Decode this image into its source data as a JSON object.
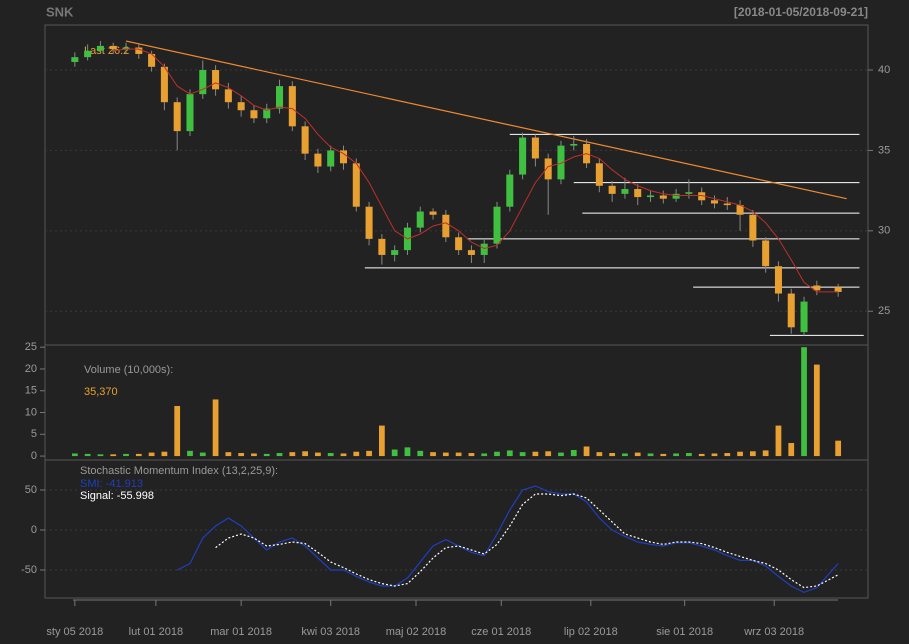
{
  "chart_data": [
    {
      "type": "candlestick",
      "title": "SNK",
      "date_range": "[2018-01-05/2018-09-21]",
      "last_label": "Last 26.2",
      "up_color": "#40c040",
      "down_color": "#e8a030",
      "ma_color": "#c0302a",
      "line_color": "#ffffff",
      "trend_color": "#f08a30",
      "x": [
        0,
        3,
        6,
        9,
        12,
        15,
        18,
        21,
        24,
        27,
        30,
        33,
        36,
        39,
        42,
        45,
        48,
        51,
        54,
        57,
        60,
        63,
        66,
        69,
        72,
        75,
        78,
        81,
        84,
        87,
        90,
        93,
        96,
        99,
        102,
        105,
        108,
        111,
        114,
        117,
        120,
        123,
        126,
        129,
        132,
        135,
        138,
        141,
        144,
        147,
        150,
        153,
        156,
        159,
        162,
        165,
        168,
        171,
        174,
        179
      ],
      "open": [
        40.5,
        40.8,
        41.2,
        41.5,
        41.3,
        41.4,
        41.0,
        40.2,
        38.0,
        36.2,
        38.5,
        40.0,
        38.8,
        38.0,
        37.5,
        37.0,
        37.6,
        39.0,
        36.5,
        34.8,
        34.0,
        35.0,
        34.2,
        31.5,
        29.5,
        28.5,
        28.8,
        30.2,
        31.2,
        31.0,
        29.6,
        28.8,
        28.5,
        29.2,
        31.5,
        33.5,
        35.8,
        34.5,
        33.2,
        35.3,
        35.4,
        34.2,
        32.8,
        32.3,
        32.6,
        32.1,
        32.2,
        32.0,
        32.3,
        32.4,
        31.9,
        31.7,
        31.6,
        31.0,
        29.4,
        27.8,
        26.1,
        23.7,
        26.6,
        26.5
      ],
      "high": [
        41.1,
        41.6,
        41.8,
        41.7,
        41.7,
        41.6,
        41.2,
        40.4,
        38.3,
        38.8,
        40.6,
        40.3,
        39.2,
        38.4,
        37.8,
        37.9,
        39.4,
        39.3,
        36.8,
        35.1,
        35.3,
        35.3,
        34.5,
        31.8,
        29.8,
        29.1,
        30.5,
        31.5,
        31.4,
        31.3,
        29.9,
        29.1,
        29.5,
        31.8,
        33.8,
        36.1,
        36.0,
        34.8,
        35.6,
        35.9,
        35.7,
        34.5,
        33.1,
        33.3,
        32.9,
        32.5,
        32.5,
        32.6,
        33.2,
        32.7,
        32.2,
        32.1,
        31.9,
        31.3,
        29.6,
        28.1,
        26.4,
        25.9,
        26.9,
        26.7
      ],
      "low": [
        40.2,
        40.6,
        41.0,
        41.0,
        41.0,
        40.7,
        39.9,
        37.5,
        35.0,
        35.9,
        38.2,
        38.4,
        37.6,
        37.1,
        36.7,
        36.7,
        37.3,
        36.2,
        34.4,
        33.6,
        33.7,
        33.8,
        31.2,
        29.1,
        27.9,
        28.1,
        28.5,
        29.9,
        30.7,
        29.3,
        28.5,
        28.0,
        28.0,
        28.9,
        31.2,
        33.2,
        34.0,
        31.0,
        32.9,
        35.0,
        33.9,
        32.4,
        31.8,
        32.0,
        31.6,
        31.8,
        31.7,
        31.8,
        32.0,
        31.6,
        31.4,
        31.3,
        30.0,
        29.0,
        27.4,
        25.6,
        23.6,
        23.5,
        26.0,
        25.9
      ],
      "close": [
        40.8,
        41.2,
        41.5,
        41.3,
        41.4,
        41.0,
        40.2,
        38.0,
        36.2,
        38.5,
        40.0,
        38.8,
        38.0,
        37.5,
        37.0,
        37.6,
        39.0,
        36.5,
        34.8,
        34.0,
        35.0,
        34.2,
        31.5,
        29.5,
        28.5,
        28.8,
        30.2,
        31.2,
        31.0,
        29.6,
        28.8,
        28.5,
        29.2,
        31.5,
        33.5,
        35.8,
        34.5,
        33.2,
        35.3,
        35.4,
        34.2,
        32.8,
        32.3,
        32.6,
        32.1,
        32.2,
        32.0,
        32.3,
        32.4,
        31.9,
        31.7,
        31.6,
        31.0,
        29.4,
        27.8,
        26.1,
        24.0,
        25.6,
        26.3,
        26.2
      ],
      "ma": [
        null,
        null,
        null,
        41.2,
        41.3,
        41.3,
        41.0,
        40.2,
        39.0,
        38.5,
        38.8,
        39.2,
        38.9,
        38.4,
        37.8,
        37.5,
        37.7,
        37.6,
        37.0,
        36.0,
        35.2,
        34.8,
        34.2,
        33.0,
        31.5,
        30.0,
        29.5,
        29.8,
        30.3,
        30.5,
        30.0,
        29.3,
        28.9,
        29.1,
        30.0,
        31.5,
        33.0,
        34.0,
        34.2,
        34.6,
        34.8,
        34.5,
        33.8,
        33.2,
        32.8,
        32.5,
        32.3,
        32.2,
        32.2,
        32.2,
        32.0,
        31.8,
        31.6,
        31.2,
        30.5,
        29.5,
        28.2,
        26.8,
        26.2,
        26.2
      ],
      "hlines": [
        {
          "value": 36,
          "from": 102,
          "to": 184
        },
        {
          "value": 33,
          "from": 117,
          "to": 184
        },
        {
          "value": 31.1,
          "from": 119,
          "to": 184
        },
        {
          "value": 29.5,
          "from": 92,
          "to": 184
        },
        {
          "value": 27.7,
          "from": 68,
          "to": 184
        },
        {
          "value": 26.5,
          "from": 145,
          "to": 184
        },
        {
          "value": 23.5,
          "from": 163,
          "to": 185
        }
      ],
      "trendline": {
        "x": [
          12,
          181
        ],
        "y": [
          41.8,
          32.0
        ]
      },
      "xlim": [
        -7,
        186
      ],
      "ylim": [
        22.9,
        42.8
      ],
      "yticks": [
        25,
        30,
        35,
        40
      ],
      "grid": true
    },
    {
      "type": "bar",
      "title": "Volume (10,000s):",
      "last_label": "35,370",
      "values": [
        0.6,
        0.5,
        0.4,
        0.4,
        0.5,
        0.5,
        0.8,
        1.0,
        11.5,
        1.2,
        0.8,
        13.0,
        0.9,
        0.7,
        0.6,
        0.5,
        0.7,
        0.9,
        1.1,
        0.8,
        0.7,
        0.6,
        1.0,
        1.2,
        7.0,
        1.5,
        2.0,
        1.2,
        0.9,
        0.8,
        0.8,
        0.7,
        0.6,
        1.0,
        1.3,
        0.9,
        1.0,
        1.1,
        0.8,
        1.4,
        2.2,
        0.9,
        0.7,
        0.6,
        0.8,
        0.6,
        0.5,
        0.6,
        0.7,
        0.5,
        0.6,
        0.7,
        1.0,
        1.1,
        1.3,
        7.0,
        3.0,
        25.0,
        21.0,
        3.537
      ],
      "ylim": [
        -0.9,
        25.5
      ],
      "yticks": [
        0,
        5,
        10,
        15,
        20,
        25
      ]
    },
    {
      "type": "line",
      "title": "Stochastic Momentum Index (13,2,25,9):",
      "series": [
        {
          "name": "SMI",
          "label": "SMI: -41.913",
          "color": "#1f3fbf",
          "dash": false,
          "values": [
            null,
            null,
            null,
            null,
            null,
            null,
            null,
            null,
            -50,
            -42,
            -10,
            5,
            15,
            5,
            -10,
            -25,
            -15,
            -10,
            -20,
            -35,
            -50,
            -50,
            -58,
            -65,
            -70,
            -70,
            -60,
            -40,
            -20,
            -12,
            -20,
            -28,
            -32,
            -5,
            25,
            50,
            55,
            48,
            45,
            45,
            35,
            15,
            0,
            -8,
            -15,
            -18,
            -20,
            -16,
            -16,
            -20,
            -25,
            -32,
            -38,
            -38,
            -45,
            -58,
            -70,
            -78,
            -72,
            -41.913
          ]
        },
        {
          "name": "Signal",
          "label": "Signal: -55.998",
          "color": "#ffffff",
          "dash": true,
          "values": [
            null,
            null,
            null,
            null,
            null,
            null,
            null,
            null,
            null,
            null,
            null,
            -22,
            -10,
            -5,
            -10,
            -20,
            -18,
            -15,
            -17,
            -28,
            -40,
            -47,
            -55,
            -62,
            -67,
            -70,
            -67,
            -52,
            -35,
            -22,
            -20,
            -25,
            -30,
            -18,
            5,
            32,
            45,
            45,
            43,
            45,
            40,
            25,
            10,
            -5,
            -10,
            -15,
            -18,
            -15,
            -15,
            -17,
            -22,
            -28,
            -33,
            -38,
            -42,
            -50,
            -62,
            -72,
            -70,
            -55.998
          ]
        }
      ],
      "ylim": [
        -85,
        87.5
      ],
      "yticks": [
        -50,
        0,
        50
      ],
      "grid": true,
      "xticks": [
        {
          "value": 0,
          "label": "sty 05 2018"
        },
        {
          "value": 19,
          "label": "lut 01 2018"
        },
        {
          "value": 39,
          "label": "mar 01 2018"
        },
        {
          "value": 60,
          "label": "kwi 03 2018"
        },
        {
          "value": 80,
          "label": "maj 02 2018"
        },
        {
          "value": 100,
          "label": "cze 01 2018"
        },
        {
          "value": 121,
          "label": "lip 02 2018"
        },
        {
          "value": 143,
          "label": "sie 01 2018"
        },
        {
          "value": 164,
          "label": "wrz 03 2018"
        }
      ]
    }
  ]
}
